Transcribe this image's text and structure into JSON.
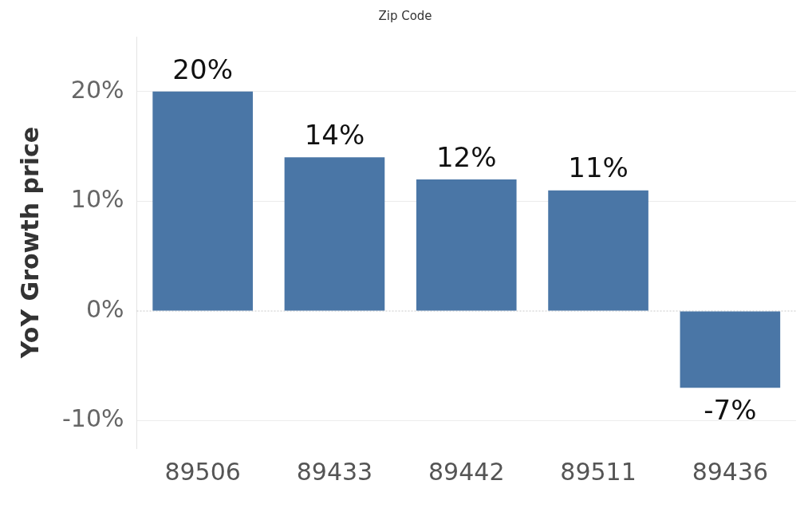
{
  "chart_data": {
    "type": "bar",
    "xlabel": "Zip Code",
    "ylabel": "YoY Growth price",
    "categories": [
      "89506",
      "89433",
      "89442",
      "89511",
      "89436"
    ],
    "values": [
      20,
      14,
      12,
      11,
      -7
    ],
    "color": "#4a76a6",
    "ylim": [
      -12.5,
      25
    ],
    "yticks": [
      {
        "value": -10,
        "label": "-10%"
      },
      {
        "value": 0,
        "label": "0%"
      },
      {
        "value": 10,
        "label": "10%"
      },
      {
        "value": 20,
        "label": "20%"
      }
    ],
    "grid": "y",
    "ref_lines": [
      {
        "axis": "y",
        "value": 0,
        "color": "#c8c8c8",
        "line_style": "dotted"
      }
    ],
    "legend": false,
    "data_labels": true,
    "value_labels": [
      "20%",
      "14%",
      "12%",
      "11%",
      "-7%"
    ]
  }
}
